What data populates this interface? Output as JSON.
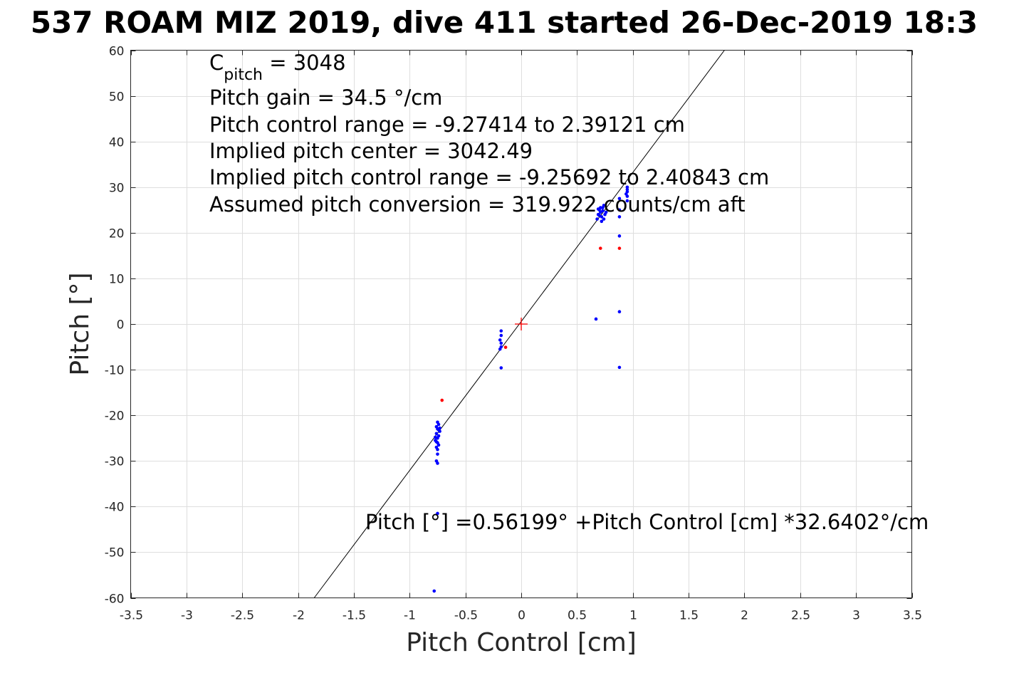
{
  "chart_data": {
    "type": "scatter",
    "title": "537 ROAM MIZ 2019, dive 411 started 26-Dec-2019 18:3",
    "xlabel": "Pitch Control [cm]",
    "ylabel": "Pitch [°]",
    "xlim": [
      -3.5,
      3.5
    ],
    "ylim": [
      -60,
      60
    ],
    "x_ticks": [
      -3.5,
      -3,
      -2.5,
      -2,
      -1.5,
      -1,
      -0.5,
      0,
      0.5,
      1,
      1.5,
      2,
      2.5,
      3,
      3.5
    ],
    "y_ticks": [
      -60,
      -50,
      -40,
      -30,
      -20,
      -10,
      0,
      10,
      20,
      30,
      40,
      50,
      60
    ],
    "grid": true,
    "annotations": {
      "cpitch_base": "C",
      "cpitch_sub": "pitch",
      "cpitch_value": " = 3048",
      "lines": [
        "Pitch gain = 34.5 °/cm",
        "Pitch control range = -9.27414 to 2.39121 cm",
        "Implied pitch center = 3042.49",
        "Implied pitch control range = -9.25692 to 2.40843 cm",
        "Assumed pitch conversion = 319.922 counts/cm aft"
      ],
      "fit_equation": "Pitch [°] =0.56199° +Pitch Control [cm] *32.6402°/cm"
    },
    "fit_line": {
      "intercept": 0.56199,
      "slope": 32.6402,
      "color": "#000000"
    },
    "center_marker": {
      "x": 0,
      "y": 0,
      "color": "#ff0000"
    },
    "series": [
      {
        "color": "#0000ff",
        "points": [
          [
            -0.75,
            -21.5
          ],
          [
            -0.74,
            -22
          ],
          [
            -0.76,
            -22.5
          ],
          [
            -0.75,
            -23
          ],
          [
            -0.73,
            -23.5
          ],
          [
            -0.76,
            -24
          ],
          [
            -0.74,
            -24.5
          ],
          [
            -0.75,
            -25
          ],
          [
            -0.77,
            -25.5
          ],
          [
            -0.75,
            -26
          ],
          [
            -0.74,
            -26.5
          ],
          [
            -0.76,
            -27
          ],
          [
            -0.75,
            -27.5
          ],
          [
            -0.75,
            -28.5
          ],
          [
            -0.76,
            -30
          ],
          [
            -0.75,
            -30.5
          ],
          [
            -0.73,
            -22.8
          ],
          [
            -0.77,
            -24.8
          ],
          [
            -0.74,
            -23.2
          ],
          [
            -0.76,
            -25.8
          ],
          [
            -0.75,
            -41.5
          ],
          [
            -0.78,
            -58.5
          ],
          [
            -0.18,
            -1.5
          ],
          [
            -0.18,
            -2.5
          ],
          [
            -0.19,
            -3.5
          ],
          [
            -0.18,
            -4.2
          ],
          [
            -0.18,
            -5
          ],
          [
            -0.19,
            -5.5
          ],
          [
            -0.18,
            -9.6
          ],
          [
            0.68,
            23
          ],
          [
            0.69,
            24
          ],
          [
            0.7,
            25
          ],
          [
            0.71,
            24.5
          ],
          [
            0.72,
            23.5
          ],
          [
            0.73,
            25.5
          ],
          [
            0.74,
            26
          ],
          [
            0.75,
            24
          ],
          [
            0.72,
            22.5
          ],
          [
            0.7,
            23.8
          ],
          [
            0.73,
            24.8
          ],
          [
            0.71,
            25.5
          ],
          [
            0.74,
            23
          ],
          [
            0.76,
            24.5
          ],
          [
            0.69,
            25.2
          ],
          [
            0.95,
            27
          ],
          [
            0.95,
            28
          ],
          [
            0.95,
            29
          ],
          [
            0.95,
            30
          ],
          [
            0.94,
            28.5
          ],
          [
            0.95,
            29.5
          ],
          [
            0.88,
            27.5
          ],
          [
            0.88,
            25
          ],
          [
            0.88,
            23.5
          ],
          [
            0.88,
            19.3
          ],
          [
            0.88,
            2.7
          ],
          [
            0.88,
            -9.5
          ],
          [
            0.67,
            1.1
          ]
        ]
      },
      {
        "color": "#ff0000",
        "points": [
          [
            -0.71,
            -16.7
          ],
          [
            -0.14,
            -5.1
          ],
          [
            0.71,
            16.6
          ],
          [
            0.88,
            16.6
          ]
        ]
      }
    ]
  }
}
